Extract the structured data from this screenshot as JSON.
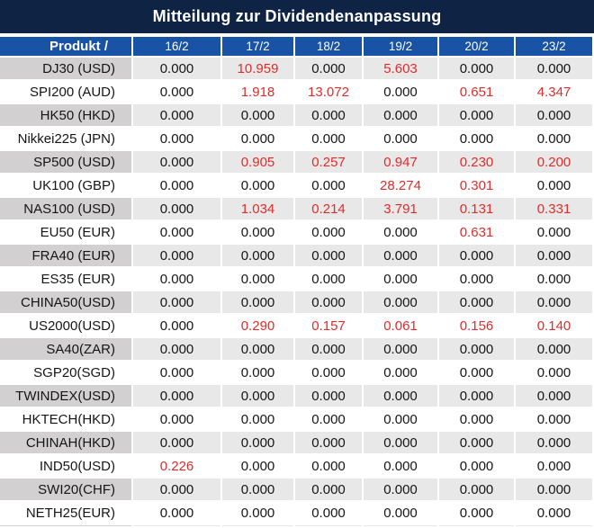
{
  "title": "Mitteilung zur Dividendenanpassung",
  "table": {
    "product_header": "Produkt /",
    "date_columns": [
      "16/2",
      "17/2",
      "18/2",
      "19/2",
      "20/2",
      "23/2"
    ],
    "rows": [
      {
        "product": "DJ30 (USD)",
        "values": [
          "0.000",
          "10.959",
          "0.000",
          "5.603",
          "0.000",
          "0.000"
        ],
        "red": [
          false,
          true,
          false,
          true,
          false,
          false
        ]
      },
      {
        "product": "SPI200 (AUD)",
        "values": [
          "0.000",
          "1.918",
          "13.072",
          "0.000",
          "0.651",
          "4.347"
        ],
        "red": [
          false,
          true,
          true,
          false,
          true,
          true
        ]
      },
      {
        "product": "HK50 (HKD)",
        "values": [
          "0.000",
          "0.000",
          "0.000",
          "0.000",
          "0.000",
          "0.000"
        ],
        "red": [
          false,
          false,
          false,
          false,
          false,
          false
        ]
      },
      {
        "product": "Nikkei225 (JPN)",
        "values": [
          "0.000",
          "0.000",
          "0.000",
          "0.000",
          "0.000",
          "0.000"
        ],
        "red": [
          false,
          false,
          false,
          false,
          false,
          false
        ]
      },
      {
        "product": "SP500 (USD)",
        "values": [
          "0.000",
          "0.905",
          "0.257",
          "0.947",
          "0.230",
          "0.200"
        ],
        "red": [
          false,
          true,
          true,
          true,
          true,
          true
        ]
      },
      {
        "product": "UK100 (GBP)",
        "values": [
          "0.000",
          "0.000",
          "0.000",
          "28.274",
          "0.301",
          "0.000"
        ],
        "red": [
          false,
          false,
          false,
          true,
          true,
          false
        ]
      },
      {
        "product": "NAS100 (USD)",
        "values": [
          "0.000",
          "1.034",
          "0.214",
          "3.791",
          "0.131",
          "0.331"
        ],
        "red": [
          false,
          true,
          true,
          true,
          true,
          true
        ]
      },
      {
        "product": "EU50 (EUR)",
        "values": [
          "0.000",
          "0.000",
          "0.000",
          "0.000",
          "0.631",
          "0.000"
        ],
        "red": [
          false,
          false,
          false,
          false,
          true,
          false
        ]
      },
      {
        "product": "FRA40 (EUR)",
        "values": [
          "0.000",
          "0.000",
          "0.000",
          "0.000",
          "0.000",
          "0.000"
        ],
        "red": [
          false,
          false,
          false,
          false,
          false,
          false
        ]
      },
      {
        "product": "ES35 (EUR)",
        "values": [
          "0.000",
          "0.000",
          "0.000",
          "0.000",
          "0.000",
          "0.000"
        ],
        "red": [
          false,
          false,
          false,
          false,
          false,
          false
        ]
      },
      {
        "product": "CHINA50(USD)",
        "values": [
          "0.000",
          "0.000",
          "0.000",
          "0.000",
          "0.000",
          "0.000"
        ],
        "red": [
          false,
          false,
          false,
          false,
          false,
          false
        ]
      },
      {
        "product": "US2000(USD)",
        "values": [
          "0.000",
          "0.290",
          "0.157",
          "0.061",
          "0.156",
          "0.140"
        ],
        "red": [
          false,
          true,
          true,
          true,
          true,
          true
        ]
      },
      {
        "product": "SA40(ZAR)",
        "values": [
          "0.000",
          "0.000",
          "0.000",
          "0.000",
          "0.000",
          "0.000"
        ],
        "red": [
          false,
          false,
          false,
          false,
          false,
          false
        ]
      },
      {
        "product": "SGP20(SGD)",
        "values": [
          "0.000",
          "0.000",
          "0.000",
          "0.000",
          "0.000",
          "0.000"
        ],
        "red": [
          false,
          false,
          false,
          false,
          false,
          false
        ]
      },
      {
        "product": "TWINDEX(USD)",
        "values": [
          "0.000",
          "0.000",
          "0.000",
          "0.000",
          "0.000",
          "0.000"
        ],
        "red": [
          false,
          false,
          false,
          false,
          false,
          false
        ]
      },
      {
        "product": "HKTECH(HKD)",
        "values": [
          "0.000",
          "0.000",
          "0.000",
          "0.000",
          "0.000",
          "0.000"
        ],
        "red": [
          false,
          false,
          false,
          false,
          false,
          false
        ]
      },
      {
        "product": "CHINAH(HKD)",
        "values": [
          "0.000",
          "0.000",
          "0.000",
          "0.000",
          "0.000",
          "0.000"
        ],
        "red": [
          false,
          false,
          false,
          false,
          false,
          false
        ]
      },
      {
        "product": "IND50(USD)",
        "values": [
          "0.226",
          "0.000",
          "0.000",
          "0.000",
          "0.000",
          "0.000"
        ],
        "red": [
          true,
          false,
          false,
          false,
          false,
          false
        ]
      },
      {
        "product": "SWI20(CHF)",
        "values": [
          "0.000",
          "0.000",
          "0.000",
          "0.000",
          "0.000",
          "0.000"
        ],
        "red": [
          false,
          false,
          false,
          false,
          false,
          false
        ]
      },
      {
        "product": "NETH25(EUR)",
        "values": [
          "0.000",
          "0.000",
          "0.000",
          "0.000",
          "0.000",
          "0.000"
        ],
        "red": [
          false,
          false,
          false,
          false,
          false,
          false
        ]
      }
    ]
  },
  "colors": {
    "title_bg": "#0f2345",
    "header_bg": "#1853a5",
    "stripe_product_bg": "#d2d0d0",
    "stripe_value_bg": "#e9e8e8",
    "row_bg": "#ffffff",
    "red_value": "#e12b2b",
    "text": "#151515"
  }
}
